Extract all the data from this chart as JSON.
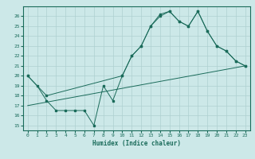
{
  "line1_x": [
    0,
    1,
    2,
    3,
    4,
    5,
    6,
    7,
    8,
    9,
    10,
    11,
    12,
    13,
    14,
    15,
    16,
    17,
    18,
    19,
    20,
    21,
    22,
    23
  ],
  "line1_y": [
    20,
    19,
    17.5,
    16.5,
    16.5,
    16.5,
    16.5,
    15,
    19,
    17.5,
    20,
    22,
    23,
    25,
    26,
    26.5,
    25.5,
    25,
    26.5,
    24.5,
    23,
    22.5,
    21.5,
    21
  ],
  "line2_x": [
    0,
    2,
    10,
    11,
    12,
    13,
    14,
    15,
    16,
    17,
    18,
    19,
    20,
    21,
    22,
    23
  ],
  "line2_y": [
    20,
    18,
    20,
    22,
    23,
    25,
    26.2,
    26.5,
    25.5,
    25,
    26.5,
    24.5,
    23,
    22.5,
    21.5,
    21
  ],
  "line3_x": [
    0,
    23
  ],
  "line3_y": [
    17.0,
    21.0
  ],
  "color": "#1a6b5a",
  "bg_color": "#cce8e8",
  "grid_color": "#aed0d0",
  "xlabel": "Humidex (Indice chaleur)",
  "xlim": [
    -0.5,
    23.5
  ],
  "ylim": [
    14.5,
    27.0
  ],
  "yticks": [
    15,
    16,
    17,
    18,
    19,
    20,
    21,
    22,
    23,
    24,
    25,
    26
  ],
  "xticks": [
    0,
    1,
    2,
    3,
    4,
    5,
    6,
    7,
    8,
    9,
    10,
    11,
    12,
    13,
    14,
    15,
    16,
    17,
    18,
    19,
    20,
    21,
    22,
    23
  ]
}
